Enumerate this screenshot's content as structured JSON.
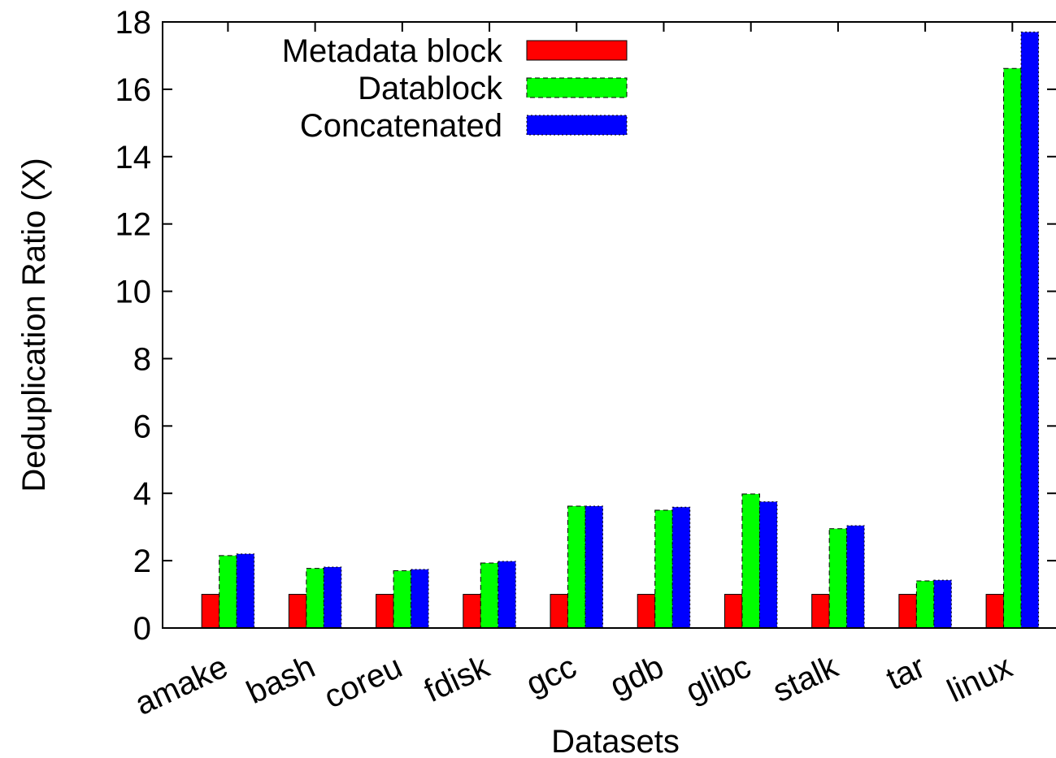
{
  "chart_data": {
    "type": "bar",
    "title": "",
    "xlabel": "Datasets",
    "ylabel": "Deduplication Ratio (X)",
    "ylim": [
      0,
      18
    ],
    "yticks": [
      0,
      2,
      4,
      6,
      8,
      10,
      12,
      14,
      16,
      18
    ],
    "grid": false,
    "legend_position": "top-left",
    "categories": [
      "amake",
      "bash",
      "coreu",
      "fdisk",
      "gcc",
      "gdb",
      "glibc",
      "stalk",
      "tar",
      "linux"
    ],
    "series": [
      {
        "name": "Metadata block",
        "color": "#ff0000",
        "pattern": "solid",
        "values": [
          1,
          1,
          1,
          1,
          1,
          1,
          1,
          1,
          1,
          1
        ]
      },
      {
        "name": "Datablock",
        "color": "#00ff00",
        "pattern": "dashed",
        "values": [
          2.15,
          1.77,
          1.7,
          1.93,
          3.62,
          3.5,
          3.98,
          2.95,
          1.4,
          16.62
        ]
      },
      {
        "name": "Concatenated",
        "color": "#0000ff",
        "pattern": "dotted",
        "values": [
          2.2,
          1.81,
          1.74,
          1.98,
          3.62,
          3.59,
          3.75,
          3.04,
          1.42,
          17.7
        ]
      }
    ]
  }
}
